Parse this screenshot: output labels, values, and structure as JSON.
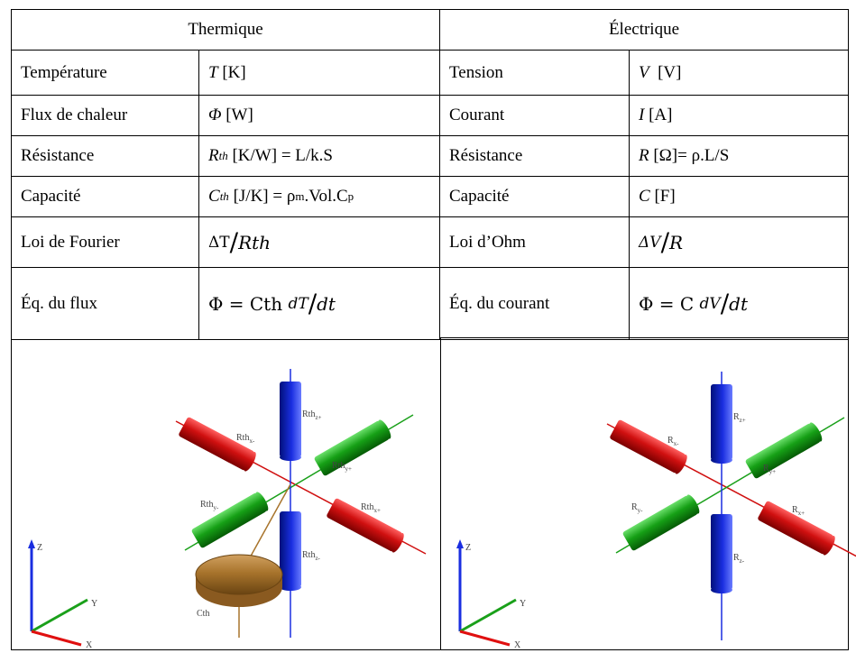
{
  "table": {
    "headers": [
      "Thermique",
      "Électrique"
    ],
    "rows": [
      [
        [
          {
            "text": "Température"
          }
        ],
        [
          {
            "text": "T",
            "style": "italic"
          },
          {
            "text": " [K]"
          }
        ],
        [
          {
            "text": "Tension"
          }
        ],
        [
          {
            "text": "V",
            "style": "italic"
          },
          {
            "text": "  [V]"
          }
        ]
      ],
      [
        [
          {
            "text": "Flux de chaleur"
          }
        ],
        [
          {
            "text": "Φ",
            "style": "italic"
          },
          {
            "text": " [W]"
          }
        ],
        [
          {
            "text": "Courant"
          }
        ],
        [
          {
            "text": "I",
            "style": "italic"
          },
          {
            "text": " [A]"
          }
        ]
      ],
      [
        [
          {
            "text": "Résistance"
          }
        ],
        [
          {
            "text": "R",
            "style": "italic"
          },
          {
            "text": "th",
            "style": "italic-sub"
          },
          {
            "text": " [K/W] = L/k.S"
          }
        ],
        [
          {
            "text": "Résistance"
          }
        ],
        [
          {
            "text": "R",
            "style": "italic"
          },
          {
            "text": " [Ω]= ρ.L/S"
          }
        ]
      ],
      [
        [
          {
            "text": "Capacité"
          }
        ],
        [
          {
            "text": "C",
            "style": "italic"
          },
          {
            "text": "th",
            "style": "italic-sub"
          },
          {
            "text": " [J/K] = ρ"
          },
          {
            "text": "m",
            "style": "sub"
          },
          {
            "text": ".Vol.C"
          },
          {
            "text": "p",
            "style": "sub"
          }
        ],
        [
          {
            "text": "Capacité"
          }
        ],
        [
          {
            "text": "C",
            "style": "italic"
          },
          {
            "text": " [F]"
          }
        ]
      ],
      [
        [
          {
            "text": "Loi de Fourier"
          }
        ],
        [
          {
            "text": "ΔT",
            "style": "frac-num"
          },
          {
            "text": "/",
            "style": "slash"
          },
          {
            "text": "Rth",
            "style": "frac-den"
          }
        ],
        [
          {
            "text": "Loi d’Ohm"
          }
        ],
        [
          {
            "text": "ΔV",
            "style": "frac-num-italic"
          },
          {
            "text": "/",
            "style": "slash"
          },
          {
            "text": "R",
            "style": "frac-den"
          }
        ]
      ],
      [
        [
          {
            "text": "Éq. du flux"
          }
        ],
        [
          {
            "text": "Φ = Cth ",
            "style": "math"
          },
          {
            "text": "dT",
            "style": "frac-num-italic"
          },
          {
            "text": "/",
            "style": "slash"
          },
          {
            "text": "dt",
            "style": "frac-den"
          }
        ],
        [
          {
            "text": "Éq. du courant"
          }
        ],
        [
          {
            "text": "Φ = C ",
            "style": "math"
          },
          {
            "text": "dV",
            "style": "frac-num-italic"
          },
          {
            "text": "/",
            "style": "slash"
          },
          {
            "text": "dt",
            "style": "frac-den"
          }
        ]
      ]
    ]
  },
  "diagrams": [
    {
      "labels": [
        {
          "text": "Rth",
          "sub": "z+"
        },
        {
          "text": "Rth",
          "sub": "x-"
        },
        {
          "text": "Rth",
          "sub": "y+"
        },
        {
          "text": "Rth",
          "sub": "y-"
        },
        {
          "text": "Rth",
          "sub": "x+"
        },
        {
          "text": "Rth",
          "sub": "z-"
        }
      ],
      "capacitor": "Cth",
      "axes": {
        "x": "X",
        "y": "Y",
        "z": "Z"
      }
    },
    {
      "labels": [
        {
          "text": "R",
          "sub": "z+"
        },
        {
          "text": "R",
          "sub": "x-"
        },
        {
          "text": "R",
          "sub": "y+"
        },
        {
          "text": "R",
          "sub": "y-"
        },
        {
          "text": "R",
          "sub": "x+"
        },
        {
          "text": "R",
          "sub": "z-"
        }
      ],
      "axes": {
        "x": "X",
        "y": "Y",
        "z": "Z"
      }
    }
  ]
}
